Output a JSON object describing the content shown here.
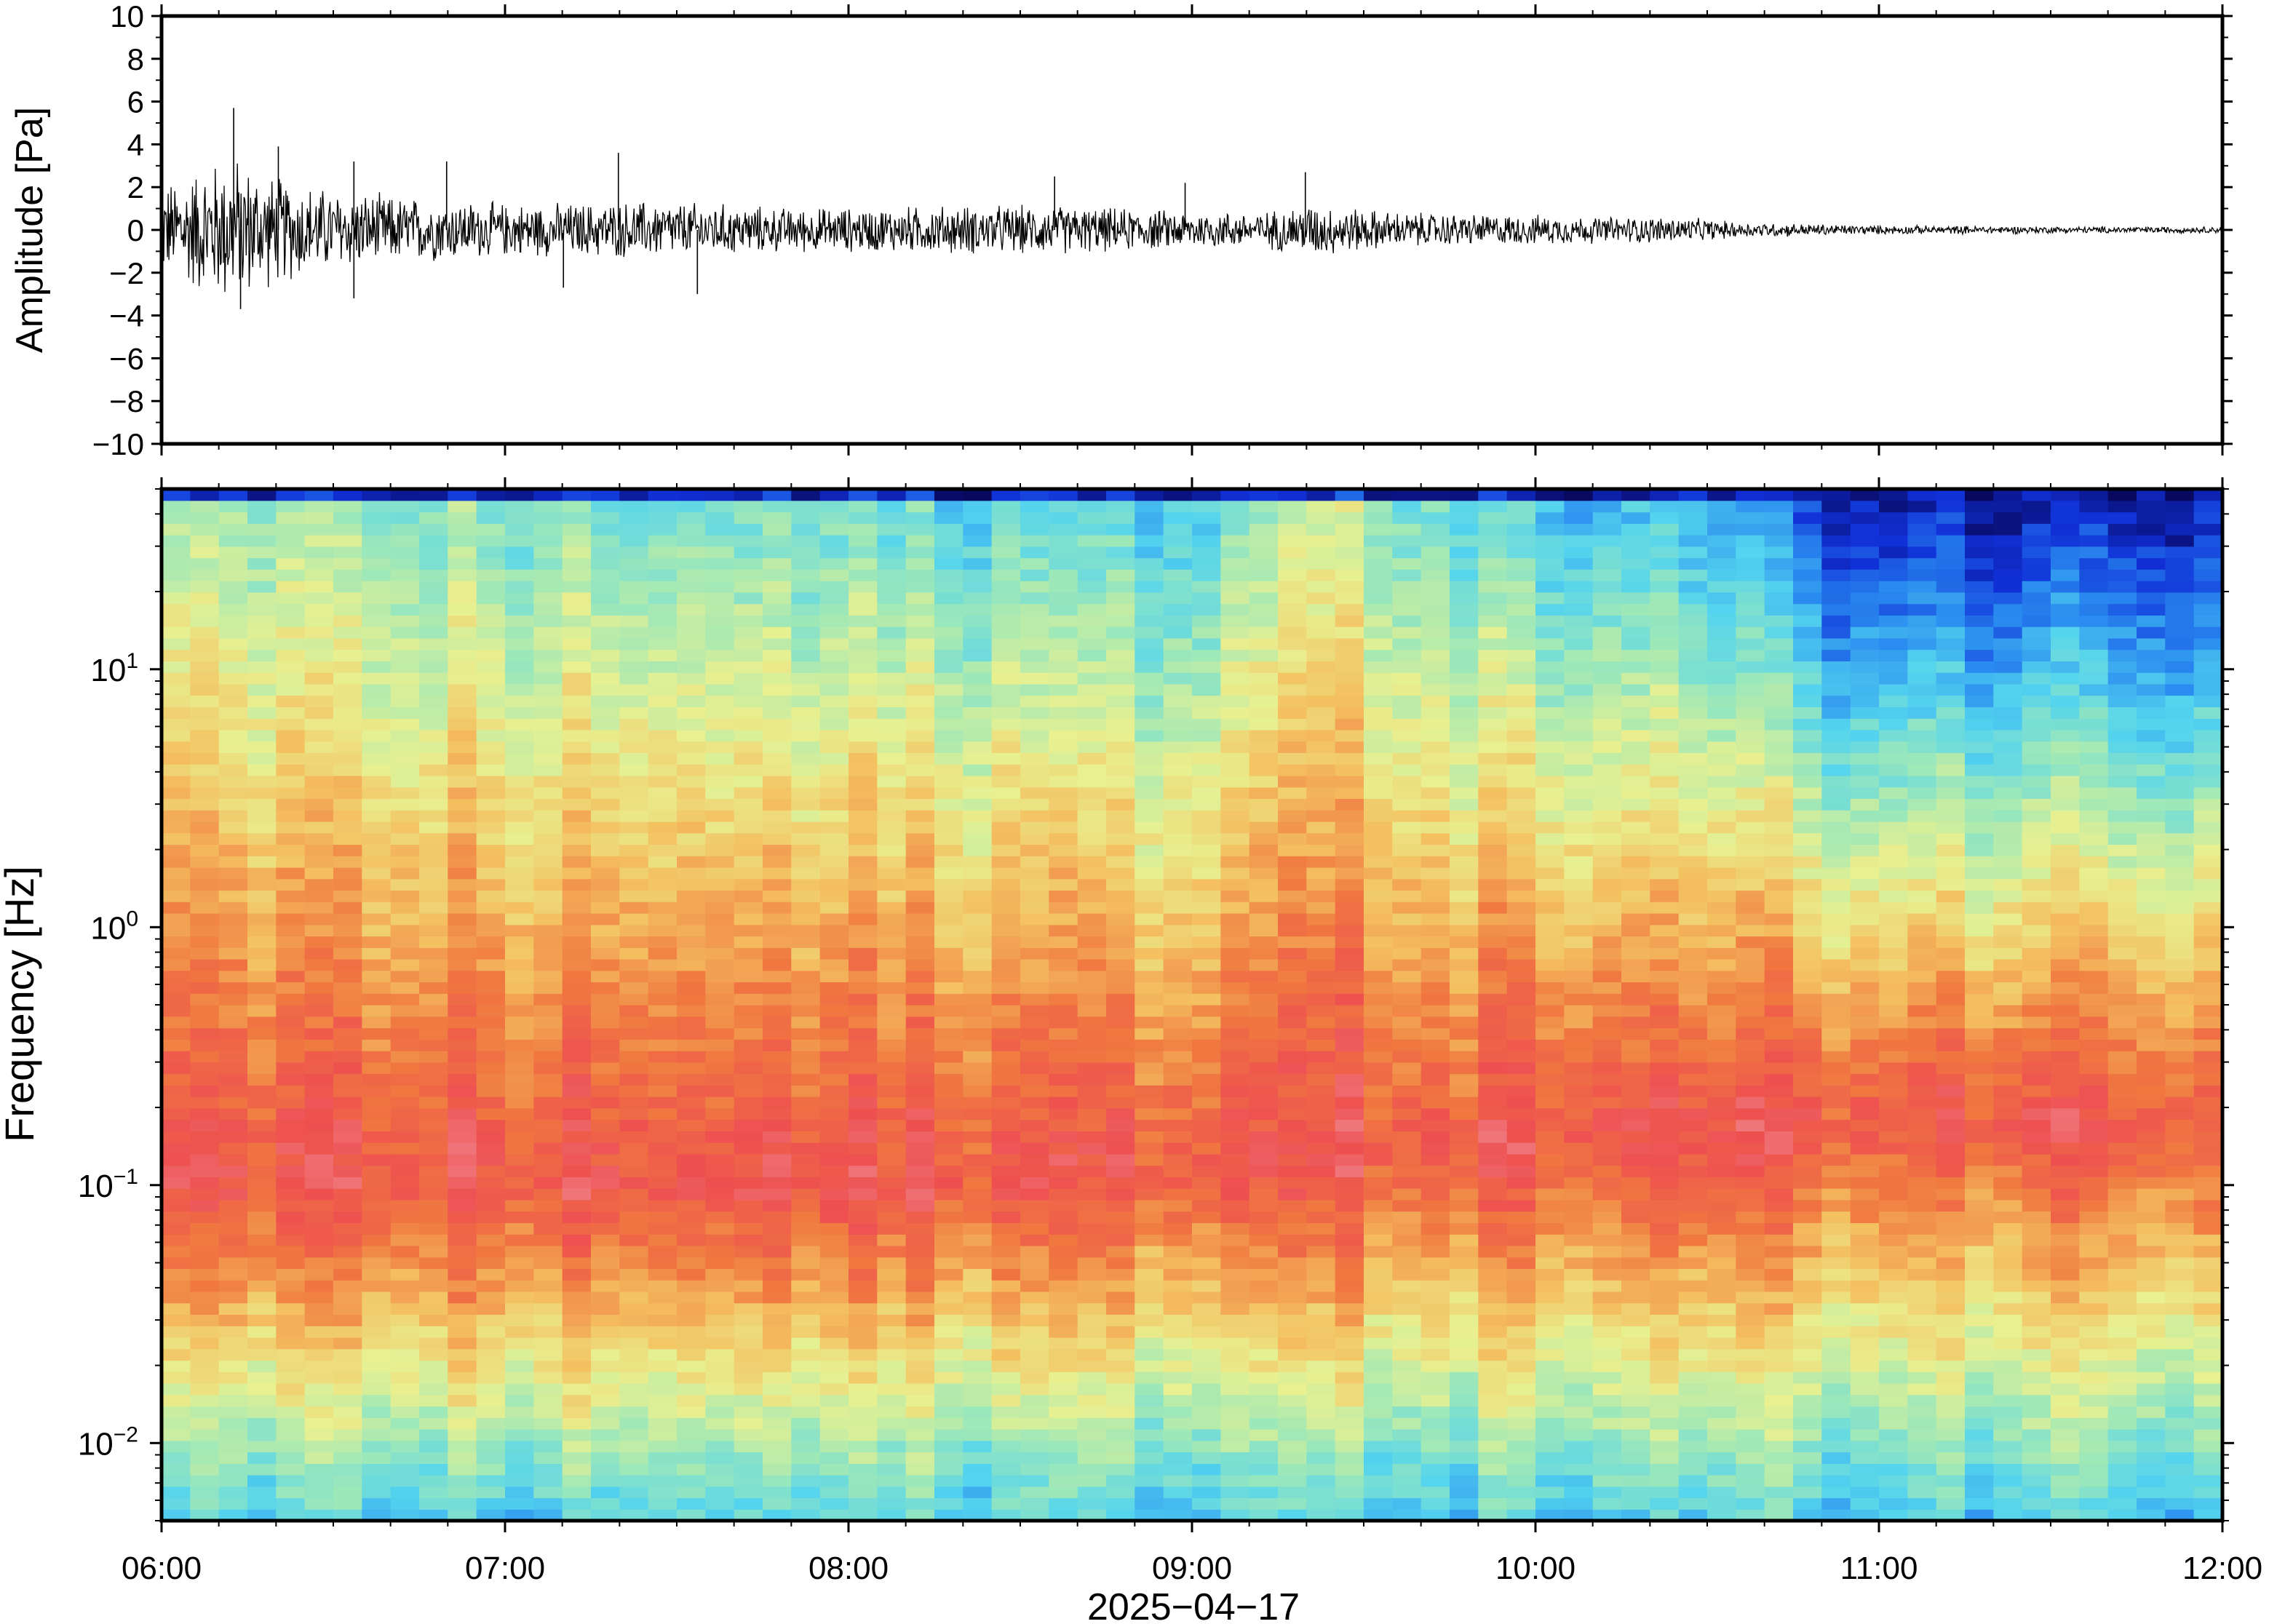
{
  "chart_data": [
    {
      "type": "line",
      "panel": "waveform",
      "ylabel": "Amplitude [Pa]",
      "ylim": [
        -10,
        10
      ],
      "yticks": [
        -10,
        -8,
        -6,
        -4,
        -2,
        0,
        2,
        4,
        6,
        8,
        10
      ],
      "ytick_labels": [
        "−10",
        "−8",
        "−6",
        "−4",
        "−2",
        "0",
        "2",
        "4",
        "6",
        "8",
        "10"
      ],
      "x_range": [
        "06:00",
        "12:00"
      ],
      "envelope": {
        "time_hours": [
          6.0,
          6.1,
          6.2,
          6.3,
          6.5,
          6.7,
          6.9,
          7.0,
          7.2,
          7.4,
          7.6,
          7.8,
          8.0,
          8.3,
          8.6,
          8.9,
          9.2,
          9.35,
          9.6,
          9.9,
          10.2,
          10.4,
          10.6,
          10.8,
          11.0,
          11.3,
          11.6,
          12.0
        ],
        "amplitude_pa": [
          2.0,
          2.8,
          3.4,
          2.6,
          1.8,
          1.5,
          1.3,
          1.2,
          1.2,
          1.3,
          1.2,
          1.0,
          1.0,
          1.1,
          1.1,
          0.9,
          0.8,
          1.2,
          0.8,
          0.7,
          0.6,
          0.6,
          0.35,
          0.28,
          0.2,
          0.18,
          0.15,
          0.15
        ]
      },
      "spikes": [
        {
          "t": 6.21,
          "y": 5.7
        },
        {
          "t": 6.34,
          "y": 3.9
        },
        {
          "t": 6.23,
          "y": -3.7
        },
        {
          "t": 6.56,
          "y": 3.2
        },
        {
          "t": 6.56,
          "y": -3.2
        },
        {
          "t": 6.83,
          "y": 3.2
        },
        {
          "t": 7.33,
          "y": 3.6
        },
        {
          "t": 7.17,
          "y": -2.7
        },
        {
          "t": 7.56,
          "y": -3.0
        },
        {
          "t": 8.6,
          "y": 2.5
        },
        {
          "t": 9.33,
          "y": 2.7
        },
        {
          "t": 8.98,
          "y": 2.2
        }
      ]
    },
    {
      "type": "heatmap",
      "panel": "spectrogram",
      "ylabel": "Frequency [Hz]",
      "xlabel": "2025−04−17",
      "y_scale": "log",
      "ylim_hz": [
        0.005,
        50
      ],
      "yticks_hz": [
        0.01,
        0.1,
        1,
        10
      ],
      "ytick_labels": [
        {
          "base": "10",
          "exp": "−2"
        },
        {
          "base": "10",
          "exp": "−1"
        },
        {
          "base": "10",
          "exp": "0"
        },
        {
          "base": "10",
          "exp": "1"
        }
      ],
      "xticks": [
        "06:00",
        "07:00",
        "08:00",
        "09:00",
        "10:00",
        "11:00",
        "12:00"
      ],
      "colormap": "jet",
      "color_stops": [
        "#08085f",
        "#1030d8",
        "#2a8cf0",
        "#54d4ee",
        "#9ee8b8",
        "#e8f090",
        "#f4c060",
        "#f07840",
        "#ee5050",
        "#f08890"
      ],
      "time_columns": 72,
      "freq_bins": 90,
      "note_levels": {
        "time_hours": [
          6.0,
          7.0,
          8.0,
          9.0,
          9.35,
          10.0,
          10.4,
          10.9,
          11.4,
          11.6,
          12.0
        ],
        "peak_power_band_hz": [
          0.1,
          0.1,
          0.1,
          0.12,
          0.12,
          0.15,
          0.15,
          0.18,
          0.18,
          0.18,
          0.18
        ],
        "high_freq_level": [
          0.45,
          0.4,
          0.36,
          0.33,
          0.5,
          0.3,
          0.28,
          0.08,
          0.05,
          0.06,
          0.08
        ]
      }
    }
  ]
}
